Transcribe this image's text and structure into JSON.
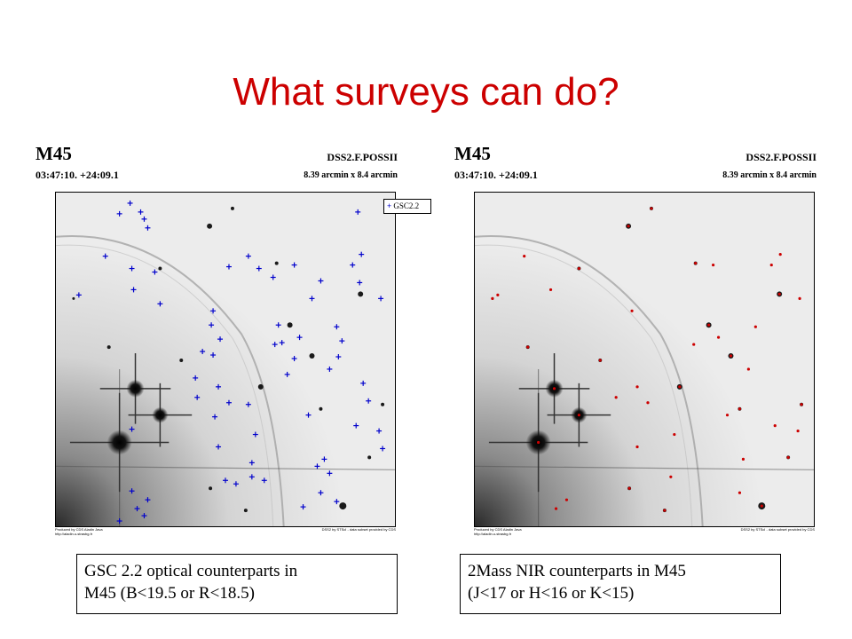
{
  "slide": {
    "title": "What surveys can do?"
  },
  "panels": [
    {
      "object": "M45",
      "coords": "03:47:10. +24:09.1",
      "survey": "DSS2.F.POSSII",
      "fov": "8.39 arcmin x 8.4 arcmin",
      "credit_left_1": "Produced by CDS Aladin Java",
      "credit_left_2": "http://aladin.u-strasbg.fr",
      "credit_right": "DSS2 by STScI - data subset provided by CDS",
      "legend_marker": "+",
      "legend_label": "GSC2.2",
      "overlay_color": "#0000cc"
    },
    {
      "object": "M45",
      "coords": "03:47:10. +24:09.1",
      "survey": "DSS2.F.POSSII",
      "fov": "8.39 arcmin x 8.4 arcmin",
      "credit_left_1": "Produced by CDS Aladin Java",
      "credit_left_2": "http://aladin.u-strasbg.fr",
      "credit_right": "DSS2 by STScI - data subset provided by CDS",
      "overlay_color": "#cc0000"
    }
  ],
  "captions": {
    "left": {
      "line1": "GSC 2.2 optical counterparts in",
      "line2": "M45 (B<19.5 or R<18.5)"
    },
    "right": {
      "line1": "2Mass NIR counterparts in M45",
      "line2": "(J<17 or H<16 or K<15)"
    }
  },
  "colors": {
    "title": "#cc0000",
    "gsc_marker": "#0000cc",
    "twomass_marker": "#cc0000"
  }
}
